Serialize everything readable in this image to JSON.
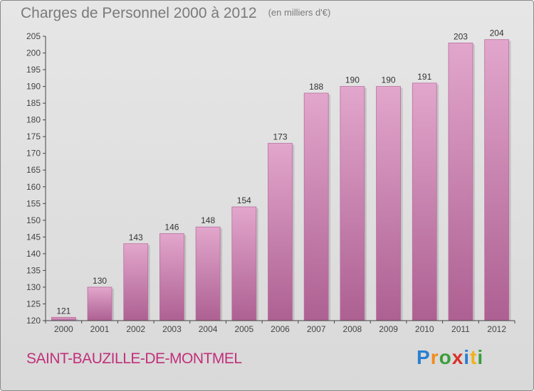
{
  "header": {
    "title": "Charges de Personnel 2000 à 2012",
    "subtitle": "(en milliers d'€)"
  },
  "footer": {
    "commune": "SAINT-BAUZILLE-DE-MONTMEL",
    "logo_text": "Proxiti"
  },
  "colors": {
    "bar_top": "#e2a6cc",
    "bar_bottom": "#ad6092",
    "title": "#7a7a7a",
    "commune": "#c0307a"
  },
  "chart_data": {
    "type": "bar",
    "title": "Charges de Personnel 2000 à 2012",
    "subtitle": "(en milliers d'€)",
    "xlabel": "",
    "ylabel": "",
    "categories": [
      "2000",
      "2001",
      "2002",
      "2003",
      "2004",
      "2005",
      "2006",
      "2007",
      "2008",
      "2009",
      "2010",
      "2011",
      "2012"
    ],
    "values": [
      121,
      130,
      143,
      146,
      148,
      154,
      173,
      188,
      190,
      190,
      191,
      203,
      204
    ],
    "ylim": [
      120,
      205
    ],
    "yticks": [
      120,
      125,
      130,
      135,
      140,
      145,
      150,
      155,
      160,
      165,
      170,
      175,
      180,
      185,
      190,
      195,
      200,
      205
    ],
    "grid": false,
    "legend": "none"
  }
}
